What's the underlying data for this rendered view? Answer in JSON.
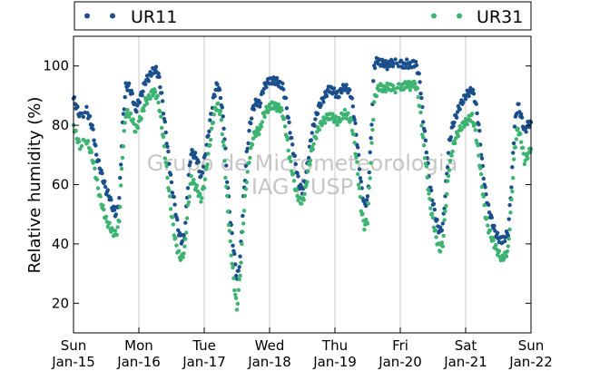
{
  "chart_data": {
    "type": "scatter",
    "ylabel": "Relative humidity (%)",
    "ylim": [
      10,
      110
    ],
    "yticks": [
      20,
      40,
      60,
      80,
      100
    ],
    "xlim_days": [
      15,
      22
    ],
    "xticks": [
      {
        "day": "Sun",
        "date": "Jan-15"
      },
      {
        "day": "Mon",
        "date": "Jan-16"
      },
      {
        "day": "Tue",
        "date": "Jan-17"
      },
      {
        "day": "Wed",
        "date": "Jan-18"
      },
      {
        "day": "Thu",
        "date": "Jan-19"
      },
      {
        "day": "Fri",
        "date": "Jan-20"
      },
      {
        "day": "Sat",
        "date": "Jan-21"
      },
      {
        "day": "Sun",
        "date": "Jan-22"
      }
    ],
    "grid": "vertical",
    "legend_position": "top",
    "watermark": [
      "Grupo de Micrometeorologia",
      "IAG / USP"
    ],
    "series": [
      {
        "name": "UR11",
        "color": "#1a4f8c",
        "points": [
          [
            15.0,
            89
          ],
          [
            15.05,
            86
          ],
          [
            15.1,
            83
          ],
          [
            15.2,
            85
          ],
          [
            15.25,
            82
          ],
          [
            15.3,
            78
          ],
          [
            15.35,
            70
          ],
          [
            15.4,
            66
          ],
          [
            15.45,
            62
          ],
          [
            15.5,
            58
          ],
          [
            15.55,
            56
          ],
          [
            15.6,
            52
          ],
          [
            15.65,
            50
          ],
          [
            15.7,
            55
          ],
          [
            15.75,
            80
          ],
          [
            15.8,
            93
          ],
          [
            15.85,
            93
          ],
          [
            15.9,
            90
          ],
          [
            15.95,
            85
          ],
          [
            16.0,
            88
          ],
          [
            16.05,
            91
          ],
          [
            16.1,
            95
          ],
          [
            16.15,
            96
          ],
          [
            16.2,
            98
          ],
          [
            16.25,
            99
          ],
          [
            16.3,
            97
          ],
          [
            16.35,
            90
          ],
          [
            16.4,
            80
          ],
          [
            16.45,
            70
          ],
          [
            16.5,
            60
          ],
          [
            16.55,
            53
          ],
          [
            16.6,
            45
          ],
          [
            16.65,
            41
          ],
          [
            16.7,
            43
          ],
          [
            16.75,
            60
          ],
          [
            16.8,
            71
          ],
          [
            16.85,
            70
          ],
          [
            16.9,
            68
          ],
          [
            16.95,
            62
          ],
          [
            17.0,
            68
          ],
          [
            17.05,
            75
          ],
          [
            17.1,
            83
          ],
          [
            17.15,
            90
          ],
          [
            17.2,
            94
          ],
          [
            17.25,
            90
          ],
          [
            17.3,
            80
          ],
          [
            17.35,
            62
          ],
          [
            17.4,
            48
          ],
          [
            17.45,
            38
          ],
          [
            17.5,
            28
          ],
          [
            17.55,
            35
          ],
          [
            17.6,
            55
          ],
          [
            17.65,
            70
          ],
          [
            17.7,
            80
          ],
          [
            17.75,
            86
          ],
          [
            17.8,
            88
          ],
          [
            17.85,
            87
          ],
          [
            17.9,
            92
          ],
          [
            17.95,
            94
          ],
          [
            18.0,
            95
          ],
          [
            18.05,
            95
          ],
          [
            18.1,
            95
          ],
          [
            18.15,
            94
          ],
          [
            18.2,
            93
          ],
          [
            18.25,
            88
          ],
          [
            18.3,
            80
          ],
          [
            18.35,
            73
          ],
          [
            18.4,
            67
          ],
          [
            18.45,
            60
          ],
          [
            18.5,
            58
          ],
          [
            18.55,
            62
          ],
          [
            18.6,
            70
          ],
          [
            18.65,
            78
          ],
          [
            18.7,
            82
          ],
          [
            18.75,
            86
          ],
          [
            18.8,
            88
          ],
          [
            18.85,
            90
          ],
          [
            18.9,
            92
          ],
          [
            18.95,
            92
          ],
          [
            19.0,
            91
          ],
          [
            19.05,
            90
          ],
          [
            19.1,
            92
          ],
          [
            19.15,
            93
          ],
          [
            19.2,
            92
          ],
          [
            19.25,
            90
          ],
          [
            19.3,
            82
          ],
          [
            19.35,
            72
          ],
          [
            19.4,
            60
          ],
          [
            19.45,
            53
          ],
          [
            19.5,
            55
          ],
          [
            19.55,
            75
          ],
          [
            19.6,
            100
          ],
          [
            19.65,
            102
          ],
          [
            19.7,
            101
          ],
          [
            19.75,
            101
          ],
          [
            19.8,
            100
          ],
          [
            19.85,
            101
          ],
          [
            19.9,
            101
          ],
          [
            20.0,
            101
          ],
          [
            20.05,
            100
          ],
          [
            20.1,
            101
          ],
          [
            20.15,
            100
          ],
          [
            20.2,
            101
          ],
          [
            20.25,
            100
          ],
          [
            20.3,
            95
          ],
          [
            20.35,
            82
          ],
          [
            20.4,
            72
          ],
          [
            20.45,
            60
          ],
          [
            20.5,
            54
          ],
          [
            20.55,
            48
          ],
          [
            20.6,
            44
          ],
          [
            20.65,
            46
          ],
          [
            20.7,
            60
          ],
          [
            20.75,
            74
          ],
          [
            20.8,
            80
          ],
          [
            20.85,
            83
          ],
          [
            20.9,
            86
          ],
          [
            20.95,
            88
          ],
          [
            21.0,
            90
          ],
          [
            21.05,
            91
          ],
          [
            21.1,
            92
          ],
          [
            21.15,
            88
          ],
          [
            21.2,
            80
          ],
          [
            21.25,
            68
          ],
          [
            21.3,
            58
          ],
          [
            21.35,
            52
          ],
          [
            21.4,
            48
          ],
          [
            21.45,
            44
          ],
          [
            21.5,
            42
          ],
          [
            21.55,
            41
          ],
          [
            21.6,
            42
          ],
          [
            21.65,
            44
          ],
          [
            21.7,
            60
          ],
          [
            21.75,
            80
          ],
          [
            21.8,
            87
          ],
          [
            21.85,
            83
          ],
          [
            21.9,
            78
          ],
          [
            21.95,
            80
          ],
          [
            22.0,
            81
          ]
        ]
      },
      {
        "name": "UR31",
        "color": "#3cb371",
        "points": [
          [
            15.0,
            80
          ],
          [
            15.05,
            76
          ],
          [
            15.1,
            73
          ],
          [
            15.2,
            75
          ],
          [
            15.25,
            72
          ],
          [
            15.3,
            68
          ],
          [
            15.35,
            62
          ],
          [
            15.4,
            56
          ],
          [
            15.45,
            52
          ],
          [
            15.5,
            48
          ],
          [
            15.55,
            46
          ],
          [
            15.6,
            44
          ],
          [
            15.65,
            43
          ],
          [
            15.7,
            48
          ],
          [
            15.75,
            70
          ],
          [
            15.8,
            84
          ],
          [
            15.85,
            84
          ],
          [
            15.9,
            82
          ],
          [
            15.95,
            78
          ],
          [
            16.0,
            81
          ],
          [
            16.05,
            84
          ],
          [
            16.1,
            88
          ],
          [
            16.15,
            89
          ],
          [
            16.2,
            91
          ],
          [
            16.25,
            91
          ],
          [
            16.3,
            88
          ],
          [
            16.35,
            80
          ],
          [
            16.4,
            70
          ],
          [
            16.45,
            60
          ],
          [
            16.5,
            50
          ],
          [
            16.55,
            42
          ],
          [
            16.6,
            37
          ],
          [
            16.65,
            35
          ],
          [
            16.7,
            38
          ],
          [
            16.75,
            52
          ],
          [
            16.8,
            62
          ],
          [
            16.85,
            60
          ],
          [
            16.9,
            58
          ],
          [
            16.95,
            55
          ],
          [
            17.0,
            60
          ],
          [
            17.05,
            68
          ],
          [
            17.1,
            76
          ],
          [
            17.15,
            84
          ],
          [
            17.2,
            87
          ],
          [
            17.25,
            84
          ],
          [
            17.3,
            72
          ],
          [
            17.35,
            55
          ],
          [
            17.4,
            40
          ],
          [
            17.45,
            28
          ],
          [
            17.5,
            18
          ],
          [
            17.55,
            30
          ],
          [
            17.6,
            48
          ],
          [
            17.65,
            62
          ],
          [
            17.7,
            70
          ],
          [
            17.75,
            76
          ],
          [
            17.8,
            78
          ],
          [
            17.85,
            78
          ],
          [
            17.9,
            83
          ],
          [
            17.95,
            85
          ],
          [
            18.0,
            86
          ],
          [
            18.05,
            87
          ],
          [
            18.1,
            86
          ],
          [
            18.15,
            86
          ],
          [
            18.2,
            84
          ],
          [
            18.25,
            78
          ],
          [
            18.3,
            70
          ],
          [
            18.35,
            64
          ],
          [
            18.4,
            58
          ],
          [
            18.45,
            55
          ],
          [
            18.5,
            54
          ],
          [
            18.55,
            58
          ],
          [
            18.6,
            66
          ],
          [
            18.65,
            72
          ],
          [
            18.7,
            76
          ],
          [
            18.75,
            79
          ],
          [
            18.8,
            81
          ],
          [
            18.85,
            82
          ],
          [
            18.9,
            83
          ],
          [
            18.95,
            83
          ],
          [
            19.0,
            82
          ],
          [
            19.05,
            81
          ],
          [
            19.1,
            83
          ],
          [
            19.15,
            84
          ],
          [
            19.2,
            83
          ],
          [
            19.25,
            81
          ],
          [
            19.3,
            74
          ],
          [
            19.35,
            64
          ],
          [
            19.4,
            52
          ],
          [
            19.45,
            46
          ],
          [
            19.5,
            48
          ],
          [
            19.55,
            68
          ],
          [
            19.6,
            88
          ],
          [
            19.65,
            92
          ],
          [
            19.7,
            93
          ],
          [
            19.75,
            92
          ],
          [
            19.8,
            93
          ],
          [
            19.85,
            93
          ],
          [
            19.9,
            92
          ],
          [
            20.0,
            93
          ],
          [
            20.05,
            93
          ],
          [
            20.1,
            94
          ],
          [
            20.15,
            93
          ],
          [
            20.2,
            94
          ],
          [
            20.25,
            93
          ],
          [
            20.3,
            86
          ],
          [
            20.35,
            75
          ],
          [
            20.4,
            65
          ],
          [
            20.45,
            54
          ],
          [
            20.5,
            48
          ],
          [
            20.55,
            42
          ],
          [
            20.6,
            38
          ],
          [
            20.65,
            40
          ],
          [
            20.7,
            54
          ],
          [
            20.75,
            66
          ],
          [
            20.8,
            72
          ],
          [
            20.85,
            76
          ],
          [
            20.9,
            78
          ],
          [
            20.95,
            80
          ],
          [
            21.0,
            81
          ],
          [
            21.05,
            82
          ],
          [
            21.1,
            83
          ],
          [
            21.15,
            78
          ],
          [
            21.2,
            70
          ],
          [
            21.25,
            60
          ],
          [
            21.3,
            50
          ],
          [
            21.35,
            45
          ],
          [
            21.4,
            42
          ],
          [
            21.45,
            39
          ],
          [
            21.5,
            37
          ],
          [
            21.55,
            35
          ],
          [
            21.6,
            36
          ],
          [
            21.65,
            38
          ],
          [
            21.7,
            54
          ],
          [
            21.75,
            72
          ],
          [
            21.8,
            79
          ],
          [
            21.85,
            75
          ],
          [
            21.9,
            68
          ],
          [
            21.95,
            70
          ],
          [
            22.0,
            72
          ]
        ]
      }
    ]
  }
}
